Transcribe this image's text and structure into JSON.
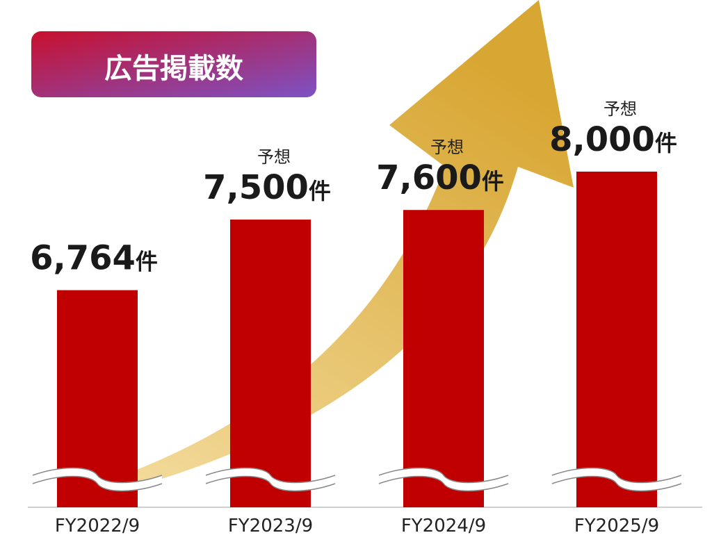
{
  "chart_data": {
    "type": "bar",
    "title": "広告掲載数",
    "categories": [
      "FY2022/9",
      "FY2023/9",
      "FY2024/9",
      "FY2025/9"
    ],
    "values": [
      6764,
      7500,
      7600,
      8000
    ],
    "value_labels": [
      "6,764件",
      "7,500件",
      "7,600件",
      "8,000件"
    ],
    "value_notes": [
      null,
      "予想",
      "予想",
      "予想"
    ],
    "color": "#c00000",
    "ylim": [
      4500,
      9000
    ]
  }
}
